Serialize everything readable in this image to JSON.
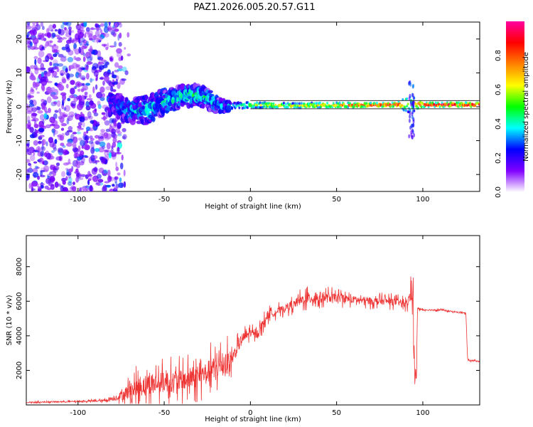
{
  "title": "PAZ1.2026.005.20.57.G11",
  "chart_data": [
    {
      "type": "heatmap",
      "panel": "spectrogram",
      "xlabel": "Height of straight line (km)",
      "ylabel": "Frequency (Hz)",
      "xlim": [
        -130,
        133
      ],
      "ylim": [
        -25,
        25
      ],
      "xticks": [
        -100,
        -50,
        0,
        50,
        100
      ],
      "yticks": [
        -20,
        -10,
        0,
        10,
        20
      ],
      "xtick_labels": [
        "-100",
        "-50",
        "0",
        "50",
        "100"
      ],
      "ytick_labels": [
        "-20",
        "-10",
        "0",
        "10",
        "20"
      ],
      "colorbar": {
        "label": "Normalized spectral amplitude",
        "range": [
          0,
          1
        ],
        "ticks": [
          0.0,
          0.2,
          0.4,
          0.6,
          0.8
        ],
        "tick_labels": [
          "0.0",
          "0.2",
          "0.4",
          "0.6",
          "0.8"
        ],
        "colormap": [
          "#ffffff",
          "#8000ff",
          "#0000ff",
          "#00ffff",
          "#00ff00",
          "#ffff00",
          "#ff8000",
          "#ff0000",
          "#ff00a0"
        ]
      },
      "ridge": [
        {
          "x": -80,
          "f": 1.0,
          "spread": 3.0,
          "amp": 0.25
        },
        {
          "x": -70,
          "f": -1.5,
          "spread": 3.5,
          "amp": 0.3
        },
        {
          "x": -60,
          "f": -1.0,
          "spread": 4.0,
          "amp": 0.35
        },
        {
          "x": -50,
          "f": 1.5,
          "spread": 3.5,
          "amp": 0.35
        },
        {
          "x": -40,
          "f": 3.0,
          "spread": 3.0,
          "amp": 0.4
        },
        {
          "x": -30,
          "f": 3.5,
          "spread": 3.0,
          "amp": 0.4
        },
        {
          "x": -20,
          "f": 1.0,
          "spread": 2.5,
          "amp": 0.35
        },
        {
          "x": -15,
          "f": 0.0,
          "spread": 1.5,
          "amp": 0.3
        },
        {
          "x": -10,
          "f": 0.2,
          "spread": 1.0,
          "amp": 0.4
        },
        {
          "x": 0,
          "f": 0.5,
          "spread": 0.8,
          "amp": 0.6
        },
        {
          "x": 10,
          "f": 0.5,
          "spread": 0.8,
          "amp": 0.65
        },
        {
          "x": 25,
          "f": 0.3,
          "spread": 0.7,
          "amp": 0.65
        },
        {
          "x": 40,
          "f": 0.5,
          "spread": 0.7,
          "amp": 0.7
        },
        {
          "x": 55,
          "f": 0.5,
          "spread": 0.7,
          "amp": 0.8
        },
        {
          "x": 70,
          "f": 0.5,
          "spread": 0.6,
          "amp": 0.9
        },
        {
          "x": 85,
          "f": 0.6,
          "spread": 0.6,
          "amp": 0.95
        },
        {
          "x": 93,
          "f": 1.0,
          "spread": 3.0,
          "amp": 0.5
        },
        {
          "x": 100,
          "f": 0.6,
          "spread": 0.6,
          "amp": 0.95
        },
        {
          "x": 115,
          "f": 0.6,
          "spread": 0.6,
          "amp": 0.95
        },
        {
          "x": 133,
          "f": 0.6,
          "spread": 0.6,
          "amp": 0.95
        }
      ]
    },
    {
      "type": "line",
      "panel": "snr",
      "xlabel": "Height of straight line (km)",
      "ylabel": "SNR (10 * v/v)",
      "xlim": [
        -130,
        133
      ],
      "ylim": [
        0,
        9800
      ],
      "xticks": [
        -100,
        -50,
        0,
        50,
        100
      ],
      "yticks": [
        2000,
        4000,
        6000,
        8000
      ],
      "xtick_labels": [
        "-100",
        "-50",
        "0",
        "50",
        "100"
      ],
      "ytick_labels": [
        "2000",
        "4000",
        "6000",
        "8000"
      ],
      "series": [
        {
          "name": "SNR",
          "color": "#ee3333",
          "x": [
            -130,
            -100,
            -85,
            -78,
            -70,
            -60,
            -50,
            -40,
            -30,
            -20,
            -12,
            -10,
            -5,
            0,
            3,
            5,
            10,
            15,
            20,
            25,
            30,
            35,
            40,
            50,
            60,
            70,
            80,
            88,
            91,
            93,
            95,
            96,
            97,
            100,
            110,
            125,
            126,
            133
          ],
          "y": [
            150,
            200,
            250,
            400,
            800,
            1200,
            1300,
            1400,
            1600,
            2200,
            2500,
            2800,
            3800,
            4200,
            4000,
            4300,
            5200,
            5400,
            5600,
            5800,
            6100,
            6200,
            6200,
            6200,
            6100,
            6000,
            6000,
            5900,
            5800,
            6500,
            7000,
            1000,
            5600,
            5500,
            5500,
            5300,
            2600,
            2500
          ],
          "noise": [
            60,
            80,
            150,
            350,
            1200,
            1500,
            1500,
            1500,
            1500,
            1700,
            1600,
            900,
            800,
            600,
            500,
            600,
            600,
            500,
            500,
            600,
            700,
            900,
            800,
            600,
            500,
            500,
            500,
            500,
            500,
            1500,
            2000,
            2500,
            200,
            120,
            100,
            100,
            80,
            80
          ]
        }
      ]
    }
  ]
}
